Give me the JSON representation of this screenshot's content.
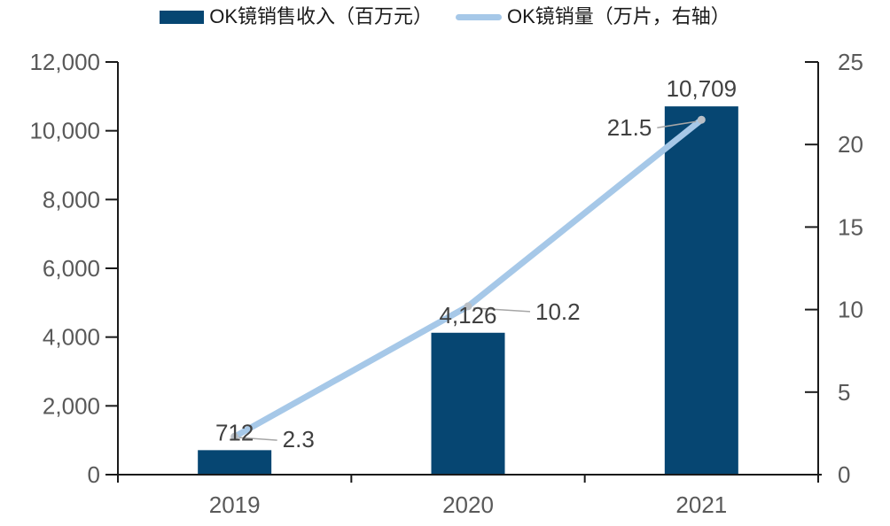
{
  "chart_data": {
    "type": "bar+line combo",
    "categories": [
      "2019",
      "2020",
      "2021"
    ],
    "series": [
      {
        "name": "OK镜销售收入（百万元）",
        "chart_type": "bar",
        "axis": "left",
        "color": "#064672",
        "values": [
          712,
          4126,
          10709
        ],
        "data_labels": [
          "712",
          "4,126",
          "10,709"
        ]
      },
      {
        "name": "OK镜销量（万片，右轴）",
        "chart_type": "line",
        "axis": "right",
        "color": "#a6c8e8",
        "values": [
          2.3,
          10.2,
          21.5
        ],
        "data_labels": [
          "2.3",
          "10.2",
          "21.5"
        ],
        "label_sides": [
          "right",
          "right",
          "left"
        ]
      }
    ],
    "left_axis": {
      "min": 0,
      "max": 12000,
      "step": 2000,
      "tick_labels": [
        "0",
        "2,000",
        "4,000",
        "6,000",
        "8,000",
        "10,000",
        "12,000"
      ]
    },
    "right_axis": {
      "min": 0,
      "max": 25,
      "step": 5,
      "tick_labels": [
        "0",
        "5",
        "10",
        "15",
        "20",
        "25"
      ]
    },
    "legend_position": "top",
    "grid": false,
    "styles": {
      "axis_line_color": "#1a1a1a",
      "tick_label_color": "#595959",
      "data_label_color": "#404040",
      "leader_line_color": "#a6a6a6",
      "marker_color": "#b9bfc6",
      "background": "#ffffff"
    }
  }
}
